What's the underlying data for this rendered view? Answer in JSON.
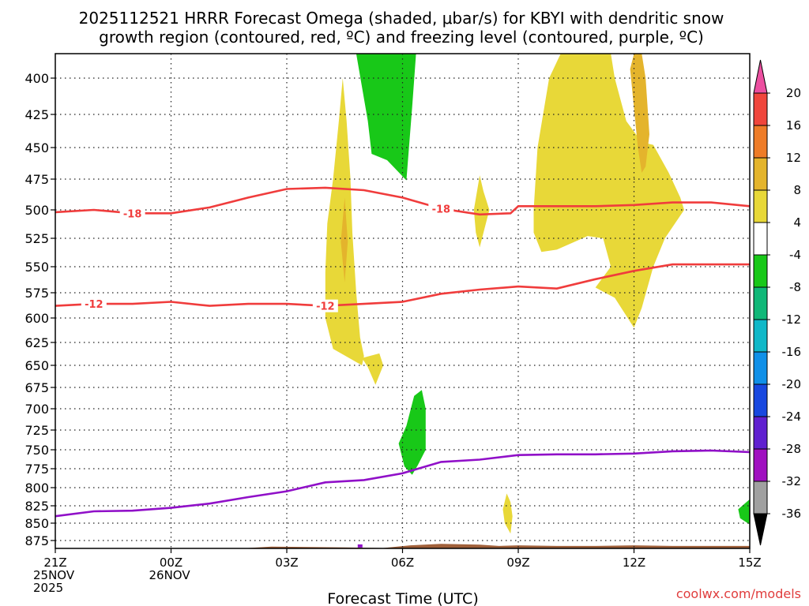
{
  "chart_data": {
    "type": "time-height cross section",
    "title_line1": "2025112521 HRRR Forecast Omega (shaded, μbar/s) for KBYI with dendritic snow",
    "title_line2": "growth region (contoured, red, ºC) and freezing level (contoured, purple, ºC)",
    "xlabel": "Forecast Time (UTC)",
    "credit": "coolwx.com/models",
    "xlim_hours": [
      0,
      18
    ],
    "ylim_mb": [
      373,
      890
    ],
    "y_ticks": [
      400,
      425,
      450,
      475,
      500,
      525,
      550,
      575,
      600,
      625,
      650,
      675,
      700,
      725,
      750,
      775,
      800,
      825,
      850,
      875
    ],
    "x_ticks": [
      {
        "h": 0,
        "lines": [
          "21Z",
          "25NOV",
          "2025"
        ]
      },
      {
        "h": 3,
        "lines": [
          "00Z",
          "26NOV"
        ]
      },
      {
        "h": 6,
        "lines": [
          "03Z"
        ]
      },
      {
        "h": 9,
        "lines": [
          "06Z"
        ]
      },
      {
        "h": 12,
        "lines": [
          "09Z"
        ]
      },
      {
        "h": 15,
        "lines": [
          "12Z"
        ]
      },
      {
        "h": 18,
        "lines": [
          "15Z"
        ]
      }
    ],
    "colorbar": {
      "labels": [
        "20",
        "16",
        "12",
        "8",
        "4",
        "-4",
        "-8",
        "-12",
        "-16",
        "-20",
        "-24",
        "-28",
        "-32",
        "-36"
      ],
      "colors": [
        "#ec4fa0",
        "#f0463c",
        "#ee7c28",
        "#e4b42c",
        "#e8d838",
        "#ffffff",
        "#18c818",
        "#10b878",
        "#10b8c8",
        "#1090e8",
        "#1848e0",
        "#6020d0",
        "#a010c0",
        "#a0a0a0"
      ]
    },
    "contours": [
      {
        "name": "-18",
        "color": "#f03c3c",
        "points": [
          [
            0,
            502
          ],
          [
            1,
            500
          ],
          [
            2,
            503
          ],
          [
            3,
            503
          ],
          [
            4,
            498
          ],
          [
            5,
            490
          ],
          [
            6,
            483
          ],
          [
            7,
            482
          ],
          [
            8,
            484
          ],
          [
            9,
            490
          ],
          [
            10,
            499
          ],
          [
            11,
            504
          ],
          [
            11.8,
            503
          ],
          [
            12,
            497
          ],
          [
            13,
            497
          ],
          [
            14,
            497
          ],
          [
            15,
            496
          ],
          [
            16,
            494
          ],
          [
            17,
            494
          ],
          [
            18,
            497
          ]
        ],
        "label_hours": [
          2.0,
          10.0
        ]
      },
      {
        "name": "-12",
        "color": "#f03c3c",
        "points": [
          [
            0,
            588
          ],
          [
            1,
            586
          ],
          [
            2,
            586
          ],
          [
            3,
            584
          ],
          [
            4,
            588
          ],
          [
            5,
            586
          ],
          [
            6,
            586
          ],
          [
            7,
            588
          ],
          [
            8,
            586
          ],
          [
            9,
            584
          ],
          [
            10,
            576
          ],
          [
            11,
            572
          ],
          [
            12,
            569
          ],
          [
            13,
            571
          ],
          [
            14,
            562
          ],
          [
            15,
            554
          ],
          [
            16,
            548
          ],
          [
            17,
            548
          ],
          [
            18,
            548
          ]
        ],
        "label_hours": [
          1.0,
          7.0
        ]
      },
      {
        "name": "freezing level",
        "color": "#9010c8",
        "points": [
          [
            0,
            840
          ],
          [
            1,
            833
          ],
          [
            2,
            832
          ],
          [
            3,
            828
          ],
          [
            4,
            822
          ],
          [
            5,
            813
          ],
          [
            6,
            805
          ],
          [
            7,
            793
          ],
          [
            8,
            790
          ],
          [
            9,
            781
          ],
          [
            10,
            766
          ],
          [
            11,
            763
          ],
          [
            12,
            757
          ],
          [
            13,
            756
          ],
          [
            14,
            756
          ],
          [
            15,
            755
          ],
          [
            16,
            752
          ],
          [
            17,
            751
          ],
          [
            18,
            753
          ]
        ],
        "label_hours": []
      }
    ],
    "shaded_regions": [
      {
        "category": "4",
        "color": "#e8d838",
        "points": [
          [
            7.0,
            555
          ],
          [
            7.05,
            512
          ],
          [
            7.2,
            475
          ],
          [
            7.35,
            430
          ],
          [
            7.45,
            400
          ],
          [
            7.55,
            430
          ],
          [
            7.65,
            475
          ],
          [
            7.7,
            520
          ],
          [
            7.8,
            575
          ],
          [
            7.9,
            620
          ],
          [
            8.0,
            640
          ],
          [
            7.95,
            650
          ],
          [
            7.2,
            632
          ],
          [
            7.0,
            600
          ]
        ]
      },
      {
        "category": "4",
        "color": "#e8d838",
        "points": [
          [
            7.95,
            642
          ],
          [
            8.4,
            637
          ],
          [
            8.5,
            650
          ],
          [
            8.3,
            672
          ],
          [
            8.1,
            652
          ]
        ]
      },
      {
        "category": "8",
        "color": "#e4b42c",
        "points": [
          [
            7.4,
            528
          ],
          [
            7.5,
            490
          ],
          [
            7.58,
            528
          ],
          [
            7.5,
            565
          ]
        ]
      },
      {
        "category": "4",
        "color": "#e8d838",
        "points": [
          [
            10.85,
            500
          ],
          [
            11.0,
            472
          ],
          [
            11.1,
            485
          ],
          [
            11.25,
            500
          ],
          [
            11.1,
            520
          ],
          [
            11.0,
            533
          ],
          [
            10.9,
            520
          ]
        ]
      },
      {
        "category": "4",
        "color": "#e8d838",
        "points": [
          [
            12.4,
            500
          ],
          [
            12.5,
            450
          ],
          [
            12.8,
            400
          ],
          [
            13.1,
            373
          ],
          [
            14.4,
            373
          ],
          [
            14.5,
            400
          ],
          [
            14.8,
            430
          ],
          [
            15.2,
            446
          ],
          [
            15.5,
            448
          ],
          [
            15.9,
            470
          ],
          [
            16.2,
            490
          ],
          [
            16.3,
            500
          ],
          [
            15.8,
            525
          ],
          [
            15.5,
            550
          ],
          [
            15.2,
            590
          ],
          [
            15.0,
            610
          ],
          [
            14.5,
            580
          ],
          [
            14.0,
            570
          ],
          [
            14.4,
            550
          ],
          [
            14.2,
            525
          ],
          [
            13.8,
            523
          ],
          [
            13.0,
            535
          ],
          [
            12.6,
            537
          ],
          [
            12.4,
            520
          ]
        ]
      },
      {
        "category": "8",
        "color": "#e4b42c",
        "points": [
          [
            14.9,
            390
          ],
          [
            15.0,
            373
          ],
          [
            15.2,
            373
          ],
          [
            15.3,
            400
          ],
          [
            15.4,
            440
          ],
          [
            15.3,
            465
          ],
          [
            15.2,
            470
          ],
          [
            15.1,
            450
          ]
        ]
      },
      {
        "category": "4",
        "color": "#e8d838",
        "points": [
          [
            11.7,
            808
          ],
          [
            11.8,
            820
          ],
          [
            11.85,
            840
          ],
          [
            11.8,
            865
          ],
          [
            11.65,
            850
          ],
          [
            11.6,
            830
          ]
        ]
      },
      {
        "category": "-8",
        "color": "#18c818",
        "points": [
          [
            7.8,
            373
          ],
          [
            9.35,
            373
          ],
          [
            9.25,
            420
          ],
          [
            9.1,
            476
          ],
          [
            8.6,
            460
          ],
          [
            8.2,
            455
          ],
          [
            8.1,
            430
          ]
        ]
      },
      {
        "category": "-8",
        "color": "#18c818",
        "points": [
          [
            8.9,
            742
          ],
          [
            9.1,
            720
          ],
          [
            9.3,
            685
          ],
          [
            9.5,
            678
          ],
          [
            9.6,
            700
          ],
          [
            9.6,
            750
          ],
          [
            9.4,
            770
          ],
          [
            9.25,
            783
          ],
          [
            9.05,
            772
          ]
        ]
      },
      {
        "category": "-8",
        "color": "#18c818",
        "points": [
          [
            18.0,
            816
          ],
          [
            17.7,
            830
          ],
          [
            17.75,
            843
          ],
          [
            18.0,
            852
          ]
        ]
      }
    ],
    "terrain": {
      "color": "#a0603a",
      "points": [
        [
          0,
          886
        ],
        [
          5,
          886
        ],
        [
          5.6,
          884
        ],
        [
          7.5,
          885
        ],
        [
          8.5,
          886
        ],
        [
          9.2,
          882
        ],
        [
          10,
          880
        ],
        [
          11,
          881
        ],
        [
          11.5,
          883
        ],
        [
          12,
          882
        ],
        [
          13,
          883
        ],
        [
          14,
          883
        ],
        [
          15,
          882
        ],
        [
          16,
          883
        ],
        [
          17,
          883
        ],
        [
          18,
          883
        ]
      ]
    },
    "markers": [
      {
        "color": "#9010c8",
        "h": 7.9,
        "p": 883
      }
    ]
  }
}
